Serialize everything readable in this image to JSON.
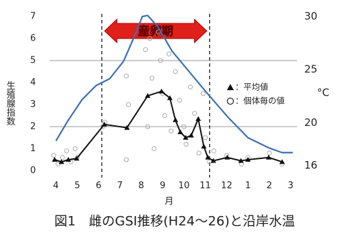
{
  "chart_data": {
    "type": "line",
    "title": "図1　雌のGSI推移(H24～26)と沿岸水温",
    "x_label": "月",
    "y_label": "生殖腺指数",
    "y2_label": "°C",
    "xlim": [
      -0.3,
      11.3
    ],
    "xticks": [
      {
        "value": 0,
        "label": "4"
      },
      {
        "value": 1,
        "label": "5"
      },
      {
        "value": 2,
        "label": "6"
      },
      {
        "value": 3,
        "label": "7"
      },
      {
        "value": 4,
        "label": "8"
      },
      {
        "value": 5,
        "label": "9"
      },
      {
        "value": 6,
        "label": "10"
      },
      {
        "value": 7,
        "label": "11"
      },
      {
        "value": 8,
        "label": "12"
      },
      {
        "value": 9,
        "label": "1"
      },
      {
        "value": 10,
        "label": "2"
      },
      {
        "value": 11,
        "label": "3"
      }
    ],
    "ylim": [
      0,
      7
    ],
    "yticks": [
      0,
      1,
      2,
      3,
      4,
      5,
      6,
      7
    ],
    "y2lim": [
      15.5,
      30
    ],
    "y2ticks": [
      16,
      20,
      25,
      30
    ],
    "ygrid": [
      2,
      5
    ],
    "spawning_period": {
      "label": "産卵期",
      "start": 2.15,
      "end": 7.2
    },
    "series": [
      {
        "name": "：個体毎の値",
        "kind": "scatter",
        "color": "#aaaaaa",
        "x": [
          -0.1,
          0.1,
          0.3,
          0.5,
          0.7,
          0.9,
          1.0,
          2.2,
          2.3,
          3.3,
          3.4,
          3.3,
          4.2,
          4.3,
          4.4,
          4.5,
          4.6,
          4.8,
          4.9,
          5.0,
          5.1,
          5.3,
          5.4,
          5.6,
          5.8,
          6.0,
          6.1,
          6.3,
          6.5,
          6.7,
          6.9,
          7.0,
          7.2,
          7.4,
          8.0,
          8.7,
          9.0,
          10.0,
          10.6
        ],
        "values": [
          0.7,
          0.3,
          0.6,
          0.9,
          0.4,
          1.0,
          0.6,
          2.0,
          2.2,
          4.3,
          3.0,
          0.5,
          5.5,
          2.0,
          6.0,
          4.2,
          1.0,
          6.3,
          5.0,
          3.5,
          2.5,
          5.3,
          1.8,
          4.5,
          3.2,
          2.0,
          1.2,
          3.8,
          2.6,
          0.8,
          3.5,
          1.5,
          0.4,
          0.9,
          0.7,
          0.3,
          0.6,
          0.8,
          0.3
        ]
      },
      {
        "name": "：平均値",
        "kind": "mean",
        "color": "#111111",
        "x": [
          -0.06,
          0.26,
          0.58,
          0.97,
          2.27,
          3.33,
          4.3,
          4.95,
          5.34,
          5.6,
          5.83,
          6.08,
          6.34,
          6.67,
          6.93,
          7.12,
          7.38,
          8.03,
          8.67,
          9.0,
          9.97,
          10.6
        ],
        "values": [
          0.5,
          0.4,
          0.5,
          0.55,
          2.1,
          1.95,
          3.4,
          3.6,
          3.3,
          2.3,
          1.75,
          1.5,
          1.6,
          2.35,
          1.1,
          0.6,
          0.45,
          0.6,
          0.45,
          0.5,
          0.6,
          0.4
        ]
      },
      {
        "kind": "temp",
        "axis": "y2",
        "color": "#3a6fb5",
        "x": [
          0,
          0.58,
          1.23,
          1.88,
          2.52,
          3.17,
          3.66,
          4.05,
          4.3,
          4.79,
          5.44,
          6.25,
          7.06,
          8.03,
          9.0,
          9.97,
          10.6,
          11.1
        ],
        "values": [
          18.3,
          20.25,
          22.2,
          23.5,
          24.15,
          25.8,
          28.05,
          30,
          30.1,
          29,
          26.75,
          24.8,
          22.85,
          20.6,
          18.6,
          17.65,
          17.2,
          17.2
        ]
      }
    ]
  }
}
